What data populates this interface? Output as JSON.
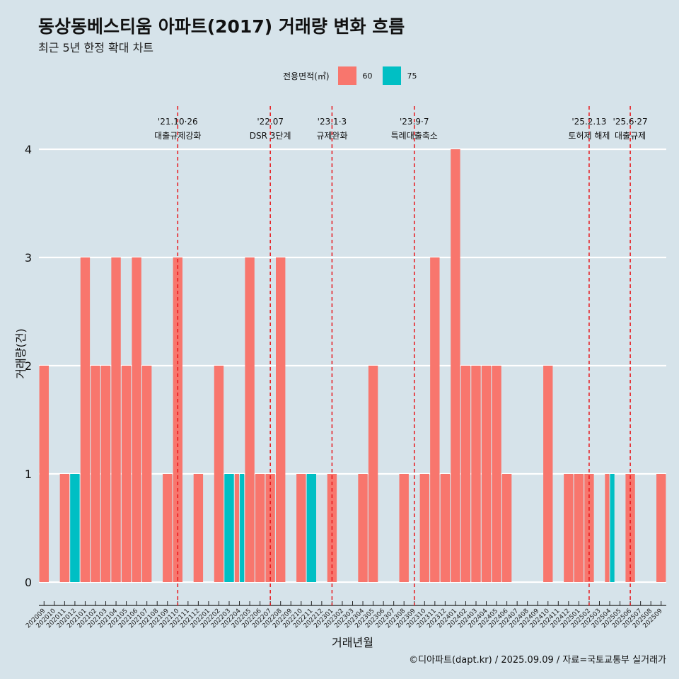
{
  "title": "동상동베스티움 아파트(2017) 거래량 변화 흐름",
  "subtitle": "최근 5년 한정 확대 차트",
  "caption": "©디아파트(dapt.kr) / 2025.09.09 / 자료=국토교통부 실거래가",
  "colors": {
    "s60": "#f8766d",
    "s75": "#00bfc4",
    "grid": "#ffffff",
    "vline": "#e8161b"
  },
  "chart_data": {
    "type": "bar",
    "xlabel": "거래년월",
    "ylabel": "거래량(건)",
    "ylim": [
      0,
      4
    ],
    "yticks": [
      0,
      1,
      2,
      3,
      4
    ],
    "legend_title": "전용면적(㎡)",
    "legend_position": "top",
    "categories": [
      "202009",
      "202010",
      "202011",
      "202012",
      "202101",
      "202102",
      "202103",
      "202104",
      "202105",
      "202106",
      "202107",
      "202108",
      "202109",
      "202110",
      "202111",
      "202112",
      "202201",
      "202202",
      "202203",
      "202204",
      "202205",
      "202206",
      "202207",
      "202208",
      "202209",
      "202210",
      "202211",
      "202212",
      "202301",
      "202302",
      "202303",
      "202304",
      "202305",
      "202306",
      "202307",
      "202308",
      "202309",
      "202310",
      "202311",
      "202312",
      "202401",
      "202402",
      "202403",
      "202404",
      "202405",
      "202406",
      "202407",
      "202408",
      "202409",
      "202410",
      "202411",
      "202412",
      "202501",
      "202502",
      "202503",
      "202504",
      "202505",
      "202506",
      "202507",
      "202508",
      "202509"
    ],
    "series": [
      {
        "name": "60",
        "values": [
          2,
          0,
          1,
          0,
          3,
          2,
          2,
          3,
          2,
          3,
          2,
          0,
          1,
          3,
          0,
          1,
          0,
          2,
          0,
          1,
          3,
          1,
          1,
          3,
          0,
          1,
          0,
          0,
          1,
          0,
          0,
          1,
          2,
          0,
          0,
          1,
          0,
          1,
          3,
          1,
          4,
          2,
          2,
          2,
          2,
          1,
          0,
          0,
          0,
          2,
          0,
          1,
          1,
          1,
          0,
          1,
          0,
          1,
          0,
          0,
          1
        ]
      },
      {
        "name": "75",
        "values": [
          0,
          0,
          0,
          1,
          0,
          0,
          0,
          0,
          0,
          0,
          0,
          0,
          0,
          0,
          0,
          0,
          0,
          0,
          1,
          1,
          0,
          0,
          0,
          0,
          0,
          0,
          1,
          0,
          0,
          0,
          0,
          0,
          0,
          0,
          0,
          0,
          0,
          0,
          0,
          0,
          0,
          0,
          0,
          0,
          0,
          0,
          0,
          0,
          0,
          0,
          0,
          0,
          0,
          0,
          0,
          1,
          0,
          0,
          0,
          0,
          0
        ]
      }
    ],
    "events": [
      {
        "date": "202110",
        "line1": "'21.10·26",
        "line2": "대출규제강화"
      },
      {
        "date": "202207",
        "line1": "'22.07",
        "line2": "DSR 3단계"
      },
      {
        "date": "202301",
        "line1": "'23.1·3",
        "line2": "규제완화"
      },
      {
        "date": "202309",
        "line1": "'23.9·7",
        "line2": "특례대출축소"
      },
      {
        "date": "202502",
        "line1": "'25.2.13",
        "line2": "토허제 해제"
      },
      {
        "date": "202506",
        "line1": "'25.6·27",
        "line2": "대출규제"
      }
    ]
  }
}
